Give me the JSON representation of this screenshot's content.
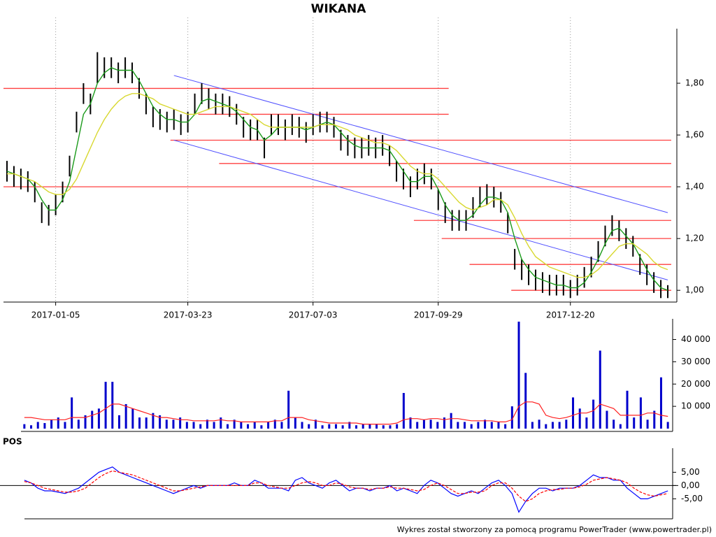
{
  "chart_data": [
    {
      "type": "ohlc",
      "title": "WIKANA",
      "categories": [
        null,
        null,
        null,
        null,
        null,
        null,
        null,
        "2017-01-05",
        null,
        null,
        null,
        null,
        null,
        null,
        null,
        null,
        null,
        null,
        null,
        null,
        null,
        null,
        null,
        null,
        null,
        null,
        "2017-03-23",
        null,
        null,
        null,
        null,
        null,
        null,
        null,
        null,
        null,
        null,
        null,
        null,
        null,
        null,
        null,
        null,
        null,
        "2017-07-03",
        null,
        null,
        null,
        null,
        null,
        null,
        null,
        null,
        null,
        null,
        null,
        null,
        null,
        null,
        null,
        null,
        null,
        "2017-09-29",
        null,
        null,
        null,
        null,
        null,
        null,
        null,
        null,
        null,
        null,
        null,
        null,
        null,
        null,
        null,
        null,
        null,
        null,
        "2017-12-20",
        null,
        null,
        null,
        null,
        null,
        null,
        null,
        null,
        null,
        null,
        null,
        null,
        null,
        null
      ],
      "high": [
        1.5,
        1.48,
        1.47,
        1.46,
        1.42,
        1.34,
        1.33,
        1.37,
        1.42,
        1.52,
        1.69,
        1.8,
        1.76,
        1.92,
        1.9,
        1.9,
        1.88,
        1.9,
        1.88,
        1.82,
        1.76,
        1.71,
        1.7,
        1.69,
        1.7,
        1.68,
        1.69,
        1.76,
        1.8,
        1.78,
        1.76,
        1.76,
        1.75,
        1.72,
        1.67,
        1.66,
        1.66,
        1.59,
        1.68,
        1.68,
        1.66,
        1.68,
        1.67,
        1.65,
        1.68,
        1.69,
        1.69,
        1.67,
        1.62,
        1.6,
        1.59,
        1.59,
        1.6,
        1.59,
        1.6,
        1.56,
        1.5,
        1.47,
        1.44,
        1.47,
        1.49,
        1.47,
        1.39,
        1.34,
        1.31,
        1.31,
        1.31,
        1.36,
        1.4,
        1.41,
        1.4,
        1.38,
        1.3,
        1.16,
        1.12,
        1.1,
        1.08,
        1.07,
        1.06,
        1.06,
        1.06,
        1.04,
        1.06,
        1.09,
        1.13,
        1.19,
        1.25,
        1.29,
        1.27,
        1.24,
        1.21,
        1.14,
        1.1,
        1.07,
        1.04,
        1.02
      ],
      "low": [
        1.42,
        1.4,
        1.39,
        1.38,
        1.34,
        1.26,
        1.25,
        1.29,
        1.34,
        1.44,
        1.61,
        1.72,
        1.68,
        1.8,
        1.82,
        1.82,
        1.8,
        1.82,
        1.8,
        1.74,
        1.68,
        1.63,
        1.62,
        1.61,
        1.62,
        1.6,
        1.61,
        1.68,
        1.72,
        1.7,
        1.68,
        1.68,
        1.67,
        1.64,
        1.59,
        1.58,
        1.58,
        1.51,
        1.6,
        1.6,
        1.58,
        1.6,
        1.59,
        1.57,
        1.6,
        1.61,
        1.61,
        1.59,
        1.54,
        1.52,
        1.51,
        1.51,
        1.52,
        1.51,
        1.52,
        1.48,
        1.42,
        1.39,
        1.36,
        1.39,
        1.41,
        1.39,
        1.31,
        1.26,
        1.23,
        1.23,
        1.23,
        1.28,
        1.32,
        1.33,
        1.32,
        1.3,
        1.22,
        1.08,
        1.04,
        1.02,
        1.0,
        0.99,
        0.98,
        0.98,
        0.98,
        0.97,
        0.98,
        1.01,
        1.05,
        1.11,
        1.17,
        1.21,
        1.19,
        1.16,
        1.13,
        1.06,
        1.02,
        0.99,
        0.97,
        0.97
      ],
      "bar_color": "#000000",
      "series": [
        {
          "color": "#1a9a1a",
          "values": [
            1.46,
            1.45,
            1.44,
            1.43,
            1.4,
            1.35,
            1.31,
            1.31,
            1.35,
            1.42,
            1.55,
            1.68,
            1.72,
            1.8,
            1.84,
            1.86,
            1.85,
            1.85,
            1.85,
            1.81,
            1.76,
            1.71,
            1.68,
            1.66,
            1.66,
            1.65,
            1.65,
            1.68,
            1.73,
            1.74,
            1.73,
            1.72,
            1.71,
            1.69,
            1.66,
            1.63,
            1.62,
            1.58,
            1.6,
            1.63,
            1.63,
            1.63,
            1.63,
            1.62,
            1.63,
            1.64,
            1.65,
            1.64,
            1.61,
            1.58,
            1.56,
            1.55,
            1.55,
            1.55,
            1.55,
            1.54,
            1.5,
            1.46,
            1.42,
            1.42,
            1.44,
            1.44,
            1.39,
            1.33,
            1.29,
            1.27,
            1.27,
            1.29,
            1.33,
            1.36,
            1.36,
            1.35,
            1.3,
            1.2,
            1.12,
            1.08,
            1.05,
            1.04,
            1.03,
            1.02,
            1.02,
            1.01,
            1.01,
            1.03,
            1.07,
            1.12,
            1.18,
            1.23,
            1.24,
            1.21,
            1.18,
            1.13,
            1.08,
            1.04,
            1.01,
            1.0
          ]
        },
        {
          "color": "#d8d830",
          "values": [
            1.45,
            1.45,
            1.44,
            1.43,
            1.42,
            1.4,
            1.38,
            1.37,
            1.37,
            1.39,
            1.43,
            1.49,
            1.55,
            1.61,
            1.66,
            1.7,
            1.73,
            1.75,
            1.76,
            1.76,
            1.75,
            1.74,
            1.72,
            1.71,
            1.7,
            1.69,
            1.68,
            1.68,
            1.69,
            1.7,
            1.71,
            1.71,
            1.71,
            1.7,
            1.69,
            1.68,
            1.66,
            1.64,
            1.63,
            1.63,
            1.63,
            1.63,
            1.63,
            1.63,
            1.63,
            1.64,
            1.64,
            1.64,
            1.63,
            1.62,
            1.6,
            1.59,
            1.58,
            1.57,
            1.57,
            1.56,
            1.54,
            1.51,
            1.48,
            1.46,
            1.45,
            1.45,
            1.43,
            1.4,
            1.37,
            1.34,
            1.32,
            1.31,
            1.32,
            1.33,
            1.35,
            1.35,
            1.33,
            1.28,
            1.22,
            1.17,
            1.13,
            1.11,
            1.09,
            1.08,
            1.07,
            1.06,
            1.05,
            1.05,
            1.06,
            1.08,
            1.11,
            1.14,
            1.17,
            1.18,
            1.18,
            1.16,
            1.14,
            1.11,
            1.09,
            1.08
          ]
        }
      ],
      "hlines": [
        {
          "color": "#ff4040",
          "x": [
            0,
            63
          ],
          "value": 1.78
        },
        {
          "color": "#ff4040",
          "x": [
            28,
            63
          ],
          "value": 1.68
        },
        {
          "color": "#ff4040",
          "x": [
            24,
            95
          ],
          "value": 1.58
        },
        {
          "color": "#ff4040",
          "x": [
            31,
            95
          ],
          "value": 1.49
        },
        {
          "color": "#ff4040",
          "x": [
            0,
            95
          ],
          "value": 1.4
        },
        {
          "color": "#ff4040",
          "x": [
            59,
            95
          ],
          "value": 1.27
        },
        {
          "color": "#ff4040",
          "x": [
            63,
            95
          ],
          "value": 1.2
        },
        {
          "color": "#ff4040",
          "x": [
            67,
            95
          ],
          "value": 1.1
        },
        {
          "color": "#ff4040",
          "x": [
            73,
            95
          ],
          "value": 1.0
        }
      ],
      "trendlines": [
        {
          "color": "#5050ff",
          "x": [
            24,
            95
          ],
          "values": [
            1.83,
            1.3
          ]
        },
        {
          "color": "#5050ff",
          "x": [
            24,
            95
          ],
          "values": [
            1.58,
            1.04
          ]
        }
      ],
      "ylim": [
        0.96,
        2.0
      ],
      "yticks": [
        {
          "value": 1.0,
          "label": "1,00"
        },
        {
          "value": 1.2,
          "label": "1,20"
        },
        {
          "value": 1.4,
          "label": "1,40"
        },
        {
          "value": 1.6,
          "label": "1,60"
        },
        {
          "value": 1.8,
          "label": "1,80"
        }
      ],
      "grid": true
    },
    {
      "type": "bar",
      "values": [
        2000,
        1500,
        3000,
        2500,
        4000,
        5000,
        3000,
        14000,
        4000,
        6000,
        8000,
        9000,
        21000,
        21000,
        6000,
        11000,
        9000,
        5000,
        5000,
        7000,
        6000,
        4000,
        4000,
        5000,
        3000,
        3000,
        2000,
        4000,
        3000,
        5000,
        2000,
        4000,
        3000,
        2000,
        3000,
        1500,
        3000,
        4000,
        3000,
        17000,
        5000,
        3000,
        2000,
        4000,
        1500,
        2000,
        2000,
        1500,
        3000,
        1500,
        2000,
        2000,
        2000,
        1500,
        1500,
        2000,
        16000,
        5000,
        3000,
        4000,
        4000,
        3000,
        5000,
        7000,
        3000,
        3000,
        2000,
        3000,
        4000,
        3000,
        3000,
        2000,
        10000,
        48000,
        25000,
        3000,
        4000,
        2000,
        3000,
        3000,
        4000,
        14000,
        9000,
        5000,
        13000,
        35000,
        8000,
        4000,
        2000,
        17000,
        5000,
        14000,
        4000,
        8000,
        23000,
        3000
      ],
      "color": "#0000cc",
      "series": [
        {
          "color": "#ff2020",
          "values": [
            5000,
            5000,
            4500,
            4000,
            4000,
            4000,
            4000,
            5000,
            5000,
            5000,
            6000,
            7000,
            9000,
            11000,
            11000,
            10000,
            9000,
            8000,
            7000,
            6000,
            5000,
            5000,
            4500,
            4000,
            4000,
            3500,
            3500,
            3500,
            3500,
            4000,
            3500,
            3500,
            3000,
            3000,
            3000,
            3000,
            3000,
            3500,
            3500,
            5000,
            5000,
            5000,
            4000,
            3500,
            3000,
            2500,
            2500,
            2500,
            2500,
            2500,
            2000,
            2000,
            2000,
            2000,
            2000,
            2500,
            4000,
            4500,
            4500,
            4000,
            4500,
            4500,
            4000,
            4500,
            4500,
            4000,
            3500,
            3500,
            3500,
            3500,
            3000,
            3000,
            4000,
            10000,
            12000,
            12000,
            11000,
            6000,
            5000,
            4500,
            5000,
            6000,
            7000,
            7000,
            8000,
            11000,
            10000,
            9000,
            6000,
            6000,
            6000,
            6000,
            7000,
            7000,
            6000,
            5500
          ]
        }
      ],
      "ylim": [
        0,
        48000
      ],
      "yticks": [
        {
          "value": 10000,
          "label": "10 000"
        },
        {
          "value": 20000,
          "label": "20 000"
        },
        {
          "value": 30000,
          "label": "30 000"
        },
        {
          "value": 40000,
          "label": "40 000"
        }
      ]
    },
    {
      "type": "line",
      "title": "POS",
      "series": [
        {
          "color": "#0000ff",
          "values": [
            2,
            1,
            -1,
            -2,
            -2,
            -2.5,
            -3,
            -2,
            -1,
            1,
            3,
            5,
            6,
            7,
            5,
            4,
            3,
            2,
            1,
            0,
            -1,
            -2,
            -3,
            -2,
            -1,
            0,
            -1,
            0,
            0,
            0,
            0,
            1,
            0,
            0,
            2,
            1,
            -1,
            -1,
            -1,
            -2,
            2,
            3,
            1,
            0,
            -1,
            1,
            2,
            0,
            -2,
            -1,
            -1,
            -2,
            -1,
            -1,
            0,
            -2,
            -1,
            -2,
            -3,
            0,
            2,
            1,
            -1,
            -3,
            -4,
            -3,
            -2,
            -3,
            -1,
            1,
            2,
            0,
            -3,
            -10,
            -6,
            -3,
            -1,
            -1,
            -2,
            -1,
            -1,
            -1,
            0,
            2,
            4,
            3,
            3,
            2,
            2,
            -1,
            -3,
            -5,
            -5,
            -4,
            -3,
            -2
          ]
        },
        {
          "color": "#ff0000",
          "style": "dashed",
          "values": [
            1.5,
            1,
            0,
            -1,
            -1.5,
            -2,
            -2.5,
            -2.5,
            -2,
            -1,
            1,
            3,
            4.5,
            5.5,
            5,
            4.5,
            4,
            3,
            2,
            1,
            0,
            -1,
            -2,
            -2,
            -1.5,
            -1,
            -0.5,
            0,
            0,
            0,
            0,
            0,
            0,
            0,
            1,
            1,
            0,
            -0.5,
            -1,
            -1,
            0,
            1,
            1.5,
            1,
            0,
            0,
            1,
            0.5,
            -0.5,
            -1,
            -1,
            -1.5,
            -1,
            -1,
            -0.5,
            -1,
            -1,
            -1.5,
            -2,
            -1.5,
            0,
            1,
            0,
            -1.5,
            -3,
            -3,
            -2.5,
            -2.5,
            -2,
            0,
            1,
            1,
            -1,
            -4,
            -6,
            -5,
            -3,
            -2,
            -1.5,
            -1.5,
            -1,
            -1,
            -0.5,
            0.5,
            2,
            2.5,
            3,
            2.5,
            2,
            1,
            -1,
            -2.5,
            -3.5,
            -4,
            -3.5,
            -3
          ]
        }
      ],
      "ylim": [
        -12,
        13
      ],
      "yticks": [
        {
          "value": 5,
          "label": "5,00"
        },
        {
          "value": 0,
          "label": "0,00"
        },
        {
          "value": -5,
          "label": "-5,00"
        }
      ],
      "zero_line": true
    }
  ],
  "footer": "Wykres został stworzony za pomocą programu PowerTrader (www.powertrader.pl)"
}
